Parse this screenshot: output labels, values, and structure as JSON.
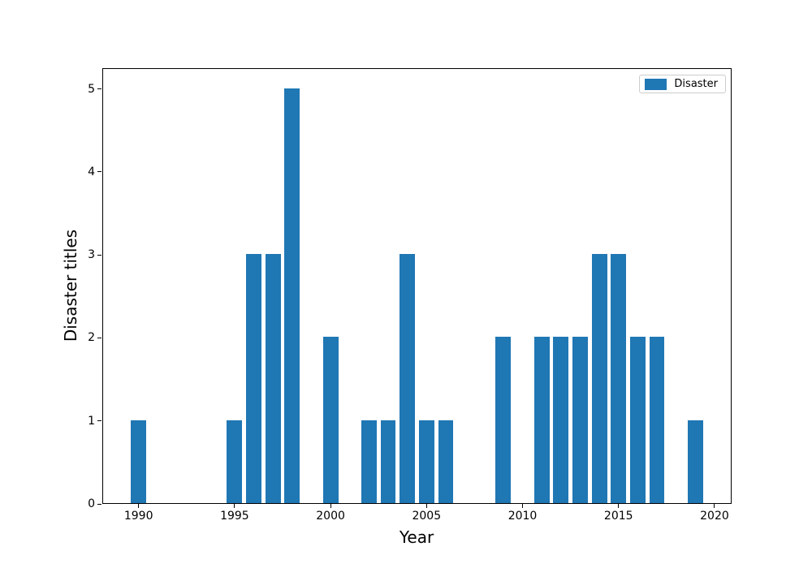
{
  "chart_data": {
    "type": "bar",
    "title": "",
    "xlabel": "Year",
    "ylabel": "Disaster titles",
    "legend": {
      "label": "Disaster",
      "position": "upper right"
    },
    "bar_color": "#1f77b4",
    "x": [
      1990,
      1995,
      1996,
      1997,
      1998,
      2000,
      2002,
      2003,
      2004,
      2005,
      2006,
      2009,
      2011,
      2012,
      2013,
      2014,
      2015,
      2016,
      2017,
      2019
    ],
    "values": [
      1,
      1,
      3,
      3,
      5,
      2,
      1,
      1,
      3,
      1,
      1,
      2,
      2,
      2,
      2,
      3,
      3,
      2,
      2,
      1
    ],
    "xticks": [
      1990,
      1995,
      2000,
      2005,
      2010,
      2015,
      2020
    ],
    "yticks": [
      0,
      1,
      2,
      3,
      4,
      5
    ],
    "xlim": [
      1988.11,
      2020.89
    ],
    "ylim": [
      0,
      5.25
    ],
    "bar_width_years": 0.8,
    "grid": false
  }
}
